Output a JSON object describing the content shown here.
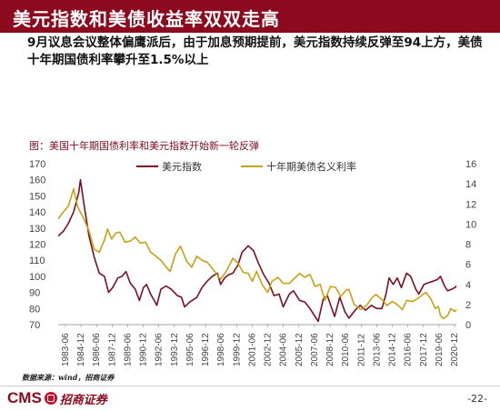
{
  "header": {
    "title": "美元指数和美债收益率双双走高"
  },
  "body": {
    "text": "9月议息会议整体偏鹰派后，由于加息预期提前，美元指数持续反弹至94上方，美债十年期国债利率攀升至1.5%以上"
  },
  "figure": {
    "caption": "图：美国十年期国债利率和美元指数开始新一轮反弹"
  },
  "footer": {
    "source": "数据来源：wind，招商证券",
    "logo_text": "CMS",
    "logo_cn": "招商证券",
    "page": "-22-"
  },
  "colors": {
    "brand": "#8B0A1E",
    "dxy": "#7B1022",
    "yield": "#C9A116"
  },
  "chart_data": {
    "type": "line",
    "title": "",
    "xlabel": "",
    "ylabel": "",
    "legend_position": "top",
    "grid": false,
    "x_tick_labels": [
      "1983-06",
      "1984-12",
      "1986-06",
      "1987-12",
      "1989-06",
      "1990-12",
      "1992-06",
      "1993-12",
      "1995-06",
      "1996-12",
      "1998-06",
      "1999-12",
      "2001-06",
      "2002-12",
      "2004-06",
      "2005-12",
      "2007-06",
      "2008-12",
      "2010-06",
      "2011-12",
      "2013-06",
      "2014-12",
      "2016-06",
      "2017-12",
      "2019-06",
      "2020-12"
    ],
    "y_left": {
      "range": [
        70,
        170
      ],
      "ticks": [
        70,
        80,
        90,
        100,
        110,
        120,
        130,
        140,
        150,
        160,
        170
      ]
    },
    "y_right": {
      "range": [
        0,
        16
      ],
      "ticks": [
        0,
        2,
        4,
        6,
        8,
        10,
        12,
        14,
        16
      ]
    },
    "x_range": [
      1983.0,
      2021.75
    ],
    "series": [
      {
        "name": "美元指数",
        "axis": "left",
        "points": [
          [
            1983.0,
            125
          ],
          [
            1983.5,
            128
          ],
          [
            1984.0,
            133
          ],
          [
            1984.5,
            140
          ],
          [
            1985.0,
            152
          ],
          [
            1985.17,
            160
          ],
          [
            1985.5,
            145
          ],
          [
            1986.0,
            125
          ],
          [
            1986.5,
            112
          ],
          [
            1987.0,
            102
          ],
          [
            1987.5,
            100
          ],
          [
            1987.9,
            90
          ],
          [
            1988.3,
            93
          ],
          [
            1988.8,
            99
          ],
          [
            1989.2,
            100
          ],
          [
            1989.6,
            103
          ],
          [
            1990.0,
            96
          ],
          [
            1990.5,
            92
          ],
          [
            1990.9,
            85
          ],
          [
            1991.3,
            93
          ],
          [
            1991.6,
            95
          ],
          [
            1992.0,
            89
          ],
          [
            1992.6,
            82
          ],
          [
            1993.0,
            92
          ],
          [
            1993.5,
            94
          ],
          [
            1994.0,
            92
          ],
          [
            1994.6,
            88
          ],
          [
            1995.0,
            87
          ],
          [
            1995.3,
            81
          ],
          [
            1995.8,
            84
          ],
          [
            1996.5,
            87
          ],
          [
            1997.0,
            93
          ],
          [
            1997.5,
            97
          ],
          [
            1998.0,
            100
          ],
          [
            1998.5,
            102
          ],
          [
            1998.8,
            95
          ],
          [
            1999.2,
            99
          ],
          [
            1999.6,
            101
          ],
          [
            2000.0,
            102
          ],
          [
            2000.5,
            107
          ],
          [
            2000.9,
            115
          ],
          [
            2001.5,
            119
          ],
          [
            2002.0,
            116
          ],
          [
            2002.5,
            108
          ],
          [
            2003.0,
            101
          ],
          [
            2003.5,
            96
          ],
          [
            2004.0,
            88
          ],
          [
            2004.5,
            89
          ],
          [
            2004.9,
            81
          ],
          [
            2005.5,
            89
          ],
          [
            2005.9,
            91
          ],
          [
            2006.5,
            85
          ],
          [
            2007.0,
            84
          ],
          [
            2007.5,
            80
          ],
          [
            2008.0,
            75
          ],
          [
            2008.3,
            72
          ],
          [
            2008.8,
            86
          ],
          [
            2009.2,
            88
          ],
          [
            2009.9,
            75
          ],
          [
            2010.4,
            87
          ],
          [
            2010.9,
            78
          ],
          [
            2011.3,
            74
          ],
          [
            2011.9,
            79
          ],
          [
            2012.4,
            82
          ],
          [
            2012.9,
            79
          ],
          [
            2013.5,
            82
          ],
          [
            2014.0,
            80
          ],
          [
            2014.5,
            80
          ],
          [
            2014.9,
            89
          ],
          [
            2015.2,
            99
          ],
          [
            2015.6,
            95
          ],
          [
            2016.0,
            99
          ],
          [
            2016.4,
            93
          ],
          [
            2016.9,
            102
          ],
          [
            2017.3,
            100
          ],
          [
            2017.8,
            92
          ],
          [
            2018.1,
            89
          ],
          [
            2018.6,
            95
          ],
          [
            2019.0,
            96
          ],
          [
            2019.5,
            97
          ],
          [
            2019.9,
            98
          ],
          [
            2020.2,
            100
          ],
          [
            2020.6,
            94
          ],
          [
            2020.9,
            91
          ],
          [
            2021.3,
            92
          ],
          [
            2021.6,
            93
          ],
          [
            2021.75,
            94
          ]
        ]
      },
      {
        "name": "十年期美债名义利率",
        "axis": "right",
        "points": [
          [
            1983.0,
            10.5
          ],
          [
            1983.5,
            11.2
          ],
          [
            1984.0,
            11.8
          ],
          [
            1984.5,
            13.5
          ],
          [
            1984.9,
            11.7
          ],
          [
            1985.5,
            10.5
          ],
          [
            1986.0,
            9.3
          ],
          [
            1986.5,
            7.5
          ],
          [
            1987.0,
            7.2
          ],
          [
            1987.5,
            8.4
          ],
          [
            1987.8,
            9.5
          ],
          [
            1988.2,
            8.5
          ],
          [
            1988.6,
            9.1
          ],
          [
            1989.0,
            9.2
          ],
          [
            1989.5,
            8.2
          ],
          [
            1990.0,
            8.3
          ],
          [
            1990.5,
            8.7
          ],
          [
            1991.0,
            8.1
          ],
          [
            1991.5,
            8.2
          ],
          [
            1992.0,
            7.2
          ],
          [
            1992.5,
            6.8
          ],
          [
            1993.0,
            6.4
          ],
          [
            1993.6,
            5.6
          ],
          [
            1993.9,
            5.3
          ],
          [
            1994.4,
            7.0
          ],
          [
            1994.9,
            7.8
          ],
          [
            1995.5,
            6.3
          ],
          [
            1996.0,
            5.7
          ],
          [
            1996.5,
            6.8
          ],
          [
            1997.0,
            6.4
          ],
          [
            1997.5,
            6.2
          ],
          [
            1998.0,
            5.6
          ],
          [
            1998.8,
            4.5
          ],
          [
            1999.3,
            5.2
          ],
          [
            2000.0,
            6.6
          ],
          [
            2000.5,
            6.1
          ],
          [
            2001.0,
            5.2
          ],
          [
            2001.5,
            5.1
          ],
          [
            2001.9,
            4.3
          ],
          [
            2002.3,
            5.3
          ],
          [
            2002.9,
            3.9
          ],
          [
            2003.4,
            3.2
          ],
          [
            2003.8,
            4.3
          ],
          [
            2004.4,
            4.7
          ],
          [
            2004.9,
            4.1
          ],
          [
            2005.5,
            4.1
          ],
          [
            2006.0,
            4.6
          ],
          [
            2006.5,
            5.1
          ],
          [
            2007.0,
            4.7
          ],
          [
            2007.5,
            5.0
          ],
          [
            2008.0,
            3.8
          ],
          [
            2008.5,
            4.0
          ],
          [
            2008.95,
            2.4
          ],
          [
            2009.5,
            3.8
          ],
          [
            2010.0,
            3.7
          ],
          [
            2010.5,
            2.8
          ],
          [
            2011.0,
            3.4
          ],
          [
            2011.3,
            3.5
          ],
          [
            2011.8,
            2.0
          ],
          [
            2012.5,
            1.5
          ],
          [
            2013.0,
            1.9
          ],
          [
            2013.5,
            2.6
          ],
          [
            2013.9,
            3.0
          ],
          [
            2014.5,
            2.5
          ],
          [
            2015.0,
            1.9
          ],
          [
            2015.5,
            2.3
          ],
          [
            2016.0,
            2.0
          ],
          [
            2016.5,
            1.5
          ],
          [
            2016.9,
            2.4
          ],
          [
            2017.5,
            2.3
          ],
          [
            2018.0,
            2.6
          ],
          [
            2018.5,
            3.0
          ],
          [
            2018.8,
            3.2
          ],
          [
            2019.3,
            2.5
          ],
          [
            2019.7,
            1.6
          ],
          [
            2020.0,
            1.8
          ],
          [
            2020.2,
            0.9
          ],
          [
            2020.5,
            0.6
          ],
          [
            2020.9,
            0.9
          ],
          [
            2021.2,
            1.6
          ],
          [
            2021.6,
            1.3
          ],
          [
            2021.75,
            1.5
          ]
        ]
      }
    ]
  }
}
